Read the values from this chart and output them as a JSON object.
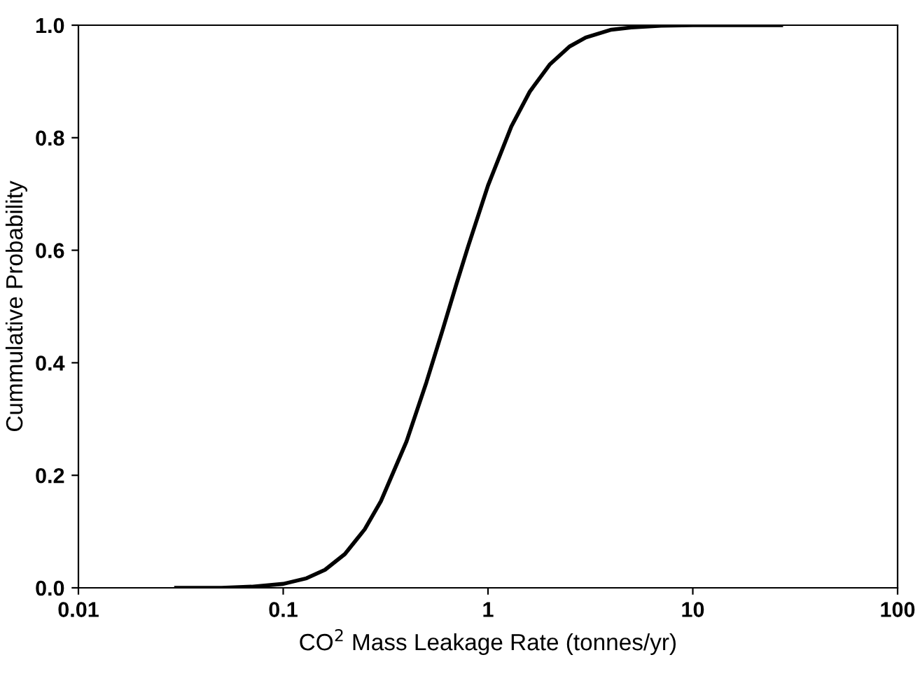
{
  "chart_data": {
    "type": "line",
    "xlabel": "CO$^{2}$ Mass Leakage Rate (tonnes/yr)",
    "ylabel": "Cummulative Probability",
    "log": "x",
    "xlim": [
      0.01,
      100
    ],
    "xticks": [
      0.01,
      0.1,
      1,
      10,
      100
    ],
    "ylim": [
      0,
      1
    ],
    "yticks": [
      {
        "value": 0,
        "label": "0.0"
      },
      {
        "value": 0.2,
        "label": "0.2"
      },
      {
        "value": 0.4,
        "label": "0.4"
      },
      {
        "value": 0.6,
        "label": "0.6"
      },
      {
        "value": 0.8,
        "label": "0.8"
      },
      {
        "value": 1,
        "label": "1.0"
      }
    ],
    "grid": false,
    "marker": "none",
    "line_style": "solid",
    "series": [
      {
        "color": "#000000",
        "x": [
          0.03,
          0.05,
          0.07,
          0.1,
          0.13,
          0.16,
          0.2,
          0.25,
          0.3,
          0.4,
          0.5,
          0.6,
          0.7,
          0.8,
          1.0,
          1.3,
          1.6,
          2,
          2.5,
          3,
          4,
          5,
          7,
          10,
          27
        ],
        "values": [
          0,
          0,
          0.002,
          0.007,
          0.017,
          0.032,
          0.06,
          0.104,
          0.154,
          0.26,
          0.365,
          0.458,
          0.539,
          0.607,
          0.715,
          0.82,
          0.882,
          0.93,
          0.962,
          0.978,
          0.992,
          0.996,
          0.999,
          1.0,
          1.0
        ]
      }
    ]
  }
}
